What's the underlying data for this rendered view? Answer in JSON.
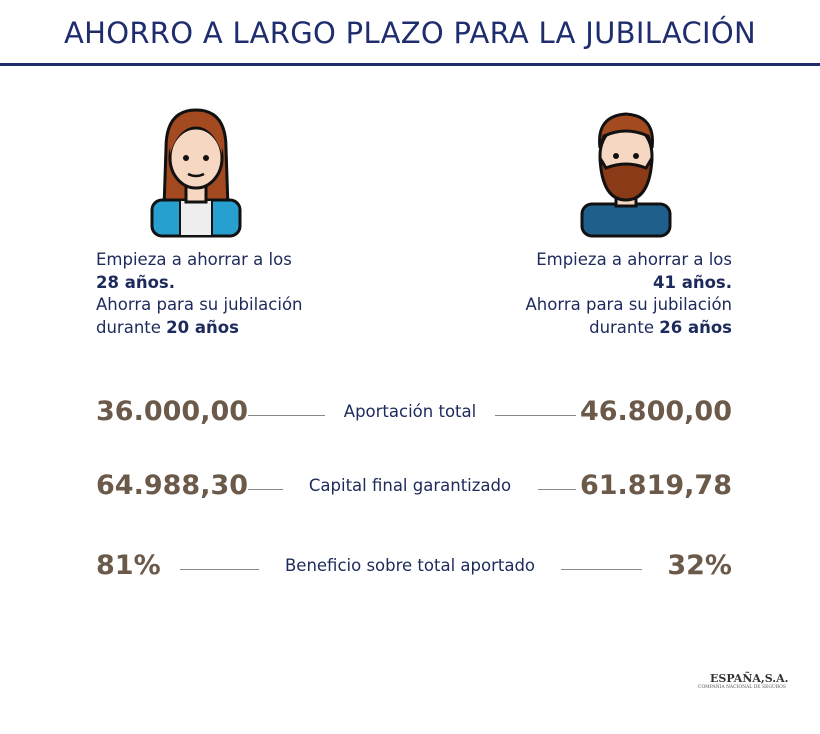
{
  "header": {
    "title": "AHORRO A LARGO PLAZO PARA LA JUBILACIÓN"
  },
  "persons": [
    {
      "line1": "Empieza a ahorrar a los",
      "age": "28 años.",
      "line3": "Ahorra para su jubilación",
      "during": "durante",
      "years": "20 años"
    },
    {
      "line1": "Empieza a ahorrar a los",
      "age": "41 años.",
      "line3": "Ahorra para su jubilación",
      "during": "durante",
      "years": "26 años"
    }
  ],
  "rows": [
    {
      "left": "36.000,00",
      "label": "Aportación total",
      "right": "46.800,00"
    },
    {
      "left": "64.988,30",
      "label": "Capital final garantizado",
      "right": "61.819,78"
    },
    {
      "left": "81%",
      "label": "Beneficio sobre total aportado",
      "right": "32%"
    }
  ],
  "logo": {
    "name": "ESPAÑA,S.A.",
    "tagline": "COMPAÑIA NACIONAL DE SEGUROS"
  }
}
